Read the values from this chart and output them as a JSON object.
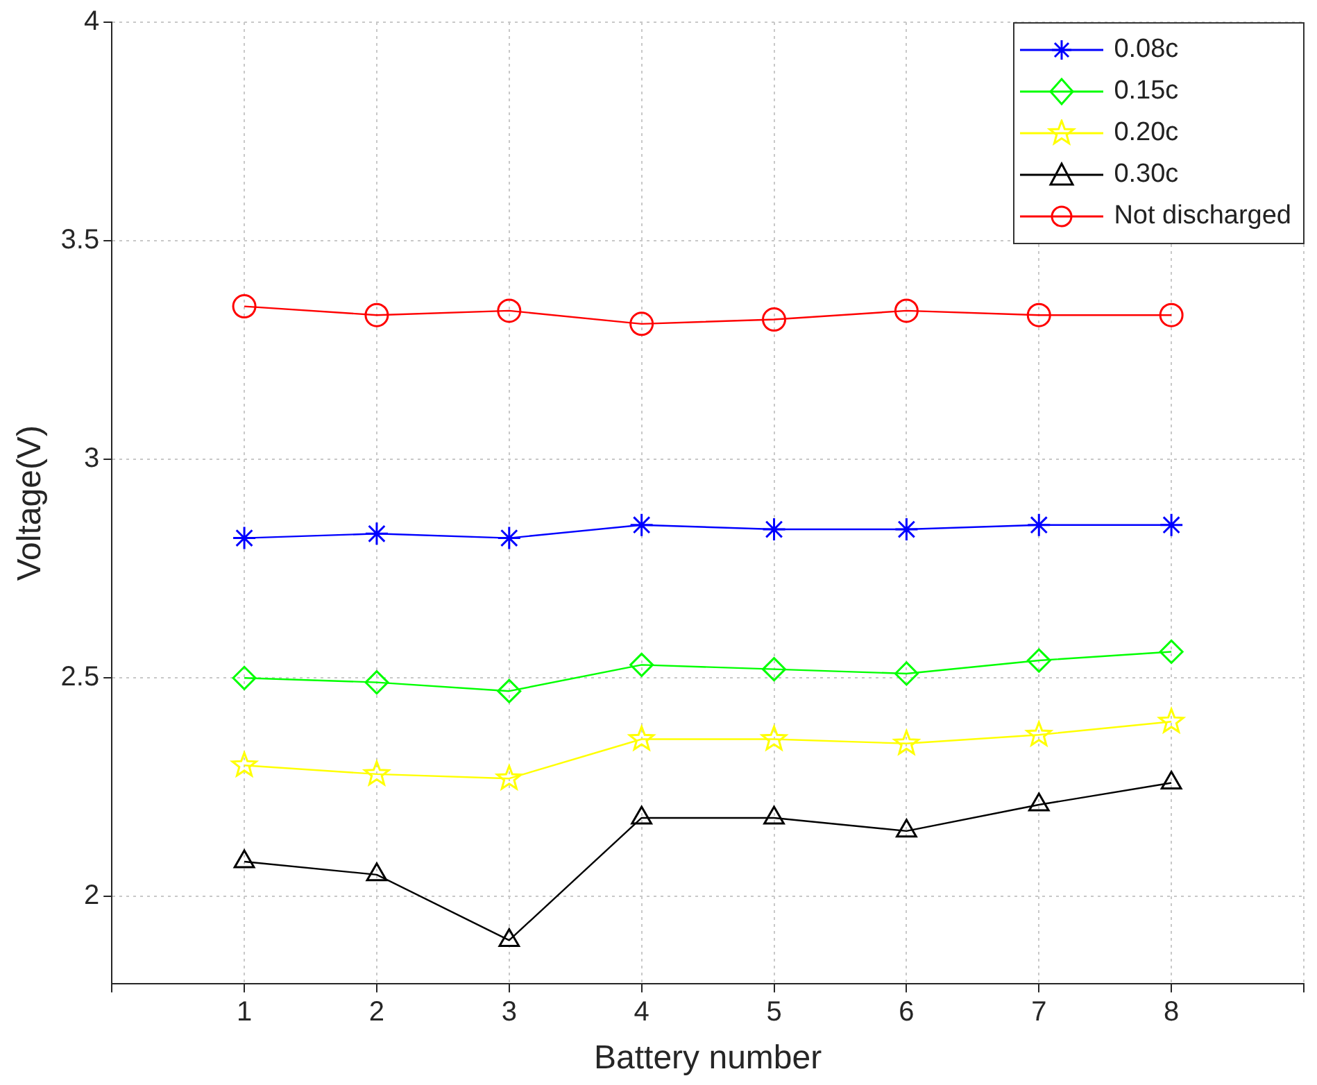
{
  "chart_data": {
    "type": "line",
    "xlabel": "Battery number",
    "ylabel": "Voltage(V)",
    "x": [
      1,
      2,
      3,
      4,
      5,
      6,
      7,
      8
    ],
    "xlim": [
      0,
      9
    ],
    "xticks": [
      {
        "value": 0,
        "label": null
      },
      1,
      2,
      3,
      4,
      5,
      6,
      7,
      8,
      {
        "value": 9,
        "label": null
      }
    ],
    "ylim": [
      1.8,
      4
    ],
    "yticks": [
      2,
      2.5,
      3,
      3.5,
      4
    ],
    "grid": true,
    "legend": "top right",
    "line_style": "solid",
    "series": [
      {
        "name": "0.08c",
        "color": "#0000ff",
        "marker": "cross",
        "values": [
          2.82,
          2.83,
          2.82,
          2.85,
          2.84,
          2.84,
          2.85,
          2.85
        ]
      },
      {
        "name": "0.15c",
        "color": "#00ff00",
        "marker": "diamond",
        "values": [
          2.5,
          2.49,
          2.47,
          2.53,
          2.52,
          2.51,
          2.54,
          2.56
        ]
      },
      {
        "name": "0.20c",
        "color": "#ffff00",
        "marker": "star",
        "values": [
          2.3,
          2.28,
          2.27,
          2.36,
          2.36,
          2.35,
          2.37,
          2.4
        ]
      },
      {
        "name": "0.30c",
        "color": "#000000",
        "marker": "triangle",
        "values": [
          2.08,
          2.05,
          1.9,
          2.18,
          2.18,
          2.15,
          2.21,
          2.26
        ]
      },
      {
        "name": "Not discharged",
        "color": "#ff0000",
        "marker": "circle",
        "values": [
          3.35,
          3.33,
          3.34,
          3.31,
          3.32,
          3.34,
          3.33,
          3.33
        ]
      }
    ]
  }
}
